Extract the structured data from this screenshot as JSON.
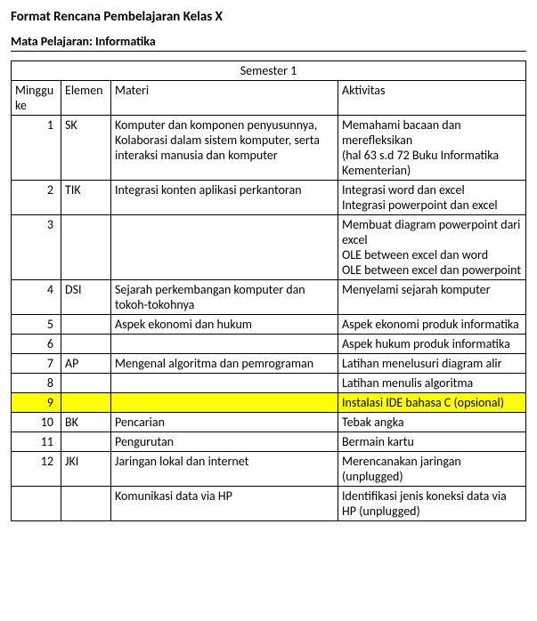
{
  "title": "Format Rencana Pembelajaran Kelas X",
  "subject": "Mata Pelajaran: Informatika",
  "semester_label": "Semester 1",
  "headers": {
    "minggu": "Minggu ke",
    "elemen": "Elemen",
    "materi": "Materi",
    "aktivitas": "Aktivitas"
  },
  "highlight_color": "#ffff00",
  "rows": [
    {
      "minggu": "1",
      "elemen": "SK",
      "materi": "Komputer dan komponen penyusunnya, Kolaborasi dalam sistem komputer, serta interaksi manusia dan komputer",
      "aktivitas": "Memahami bacaan dan merefleksikan\n(hal 63 s.d 72 Buku Informatika Kementerian)",
      "highlight": false
    },
    {
      "minggu": "2",
      "elemen": "TIK",
      "materi": "Integrasi konten aplikasi perkantoran",
      "aktivitas": "Integrasi word dan excel\nIntegrasi powerpoint dan excel",
      "highlight": false
    },
    {
      "minggu": "3",
      "elemen": "",
      "materi": "",
      "aktivitas": "Membuat diagram powerpoint dari excel\nOLE between excel dan word\nOLE between excel dan powerpoint",
      "highlight": false
    },
    {
      "minggu": "4",
      "elemen": "DSI",
      "materi": "Sejarah perkembangan komputer dan tokoh-tokohnya",
      "aktivitas": "Menyelami sejarah komputer",
      "highlight": false
    },
    {
      "minggu": "5",
      "elemen": "",
      "materi": "Aspek ekonomi dan hukum",
      "aktivitas": "Aspek ekonomi produk informatika",
      "highlight": false
    },
    {
      "minggu": "6",
      "elemen": "",
      "materi": "",
      "aktivitas": "Aspek hukum produk informatika",
      "highlight": false
    },
    {
      "minggu": "7",
      "elemen": "AP",
      "materi": "Mengenal algoritma dan pemrograman",
      "aktivitas": "Latihan menelusuri diagram alir",
      "highlight": false
    },
    {
      "minggu": "8",
      "elemen": "",
      "materi": "",
      "aktivitas": "Latihan menulis algoritma",
      "highlight": false
    },
    {
      "minggu": "9",
      "elemen": "",
      "materi": "",
      "aktivitas": "Instalasi IDE bahasa C (opsional)",
      "highlight": true
    },
    {
      "minggu": "10",
      "elemen": "BK",
      "materi": "Pencarian",
      "aktivitas": "Tebak angka",
      "highlight": false
    },
    {
      "minggu": "11",
      "elemen": "",
      "materi": "Pengurutan",
      "aktivitas": "Bermain kartu",
      "highlight": false
    },
    {
      "minggu": "12",
      "elemen": "JKI",
      "materi": "Jaringan lokal dan internet",
      "aktivitas": "Merencanakan jaringan (unplugged)",
      "highlight": false
    },
    {
      "minggu": "",
      "elemen": "",
      "materi": "Komunikasi data via HP",
      "aktivitas": "Identifikasi jenis koneksi data via HP (unplugged)",
      "highlight": false
    }
  ]
}
